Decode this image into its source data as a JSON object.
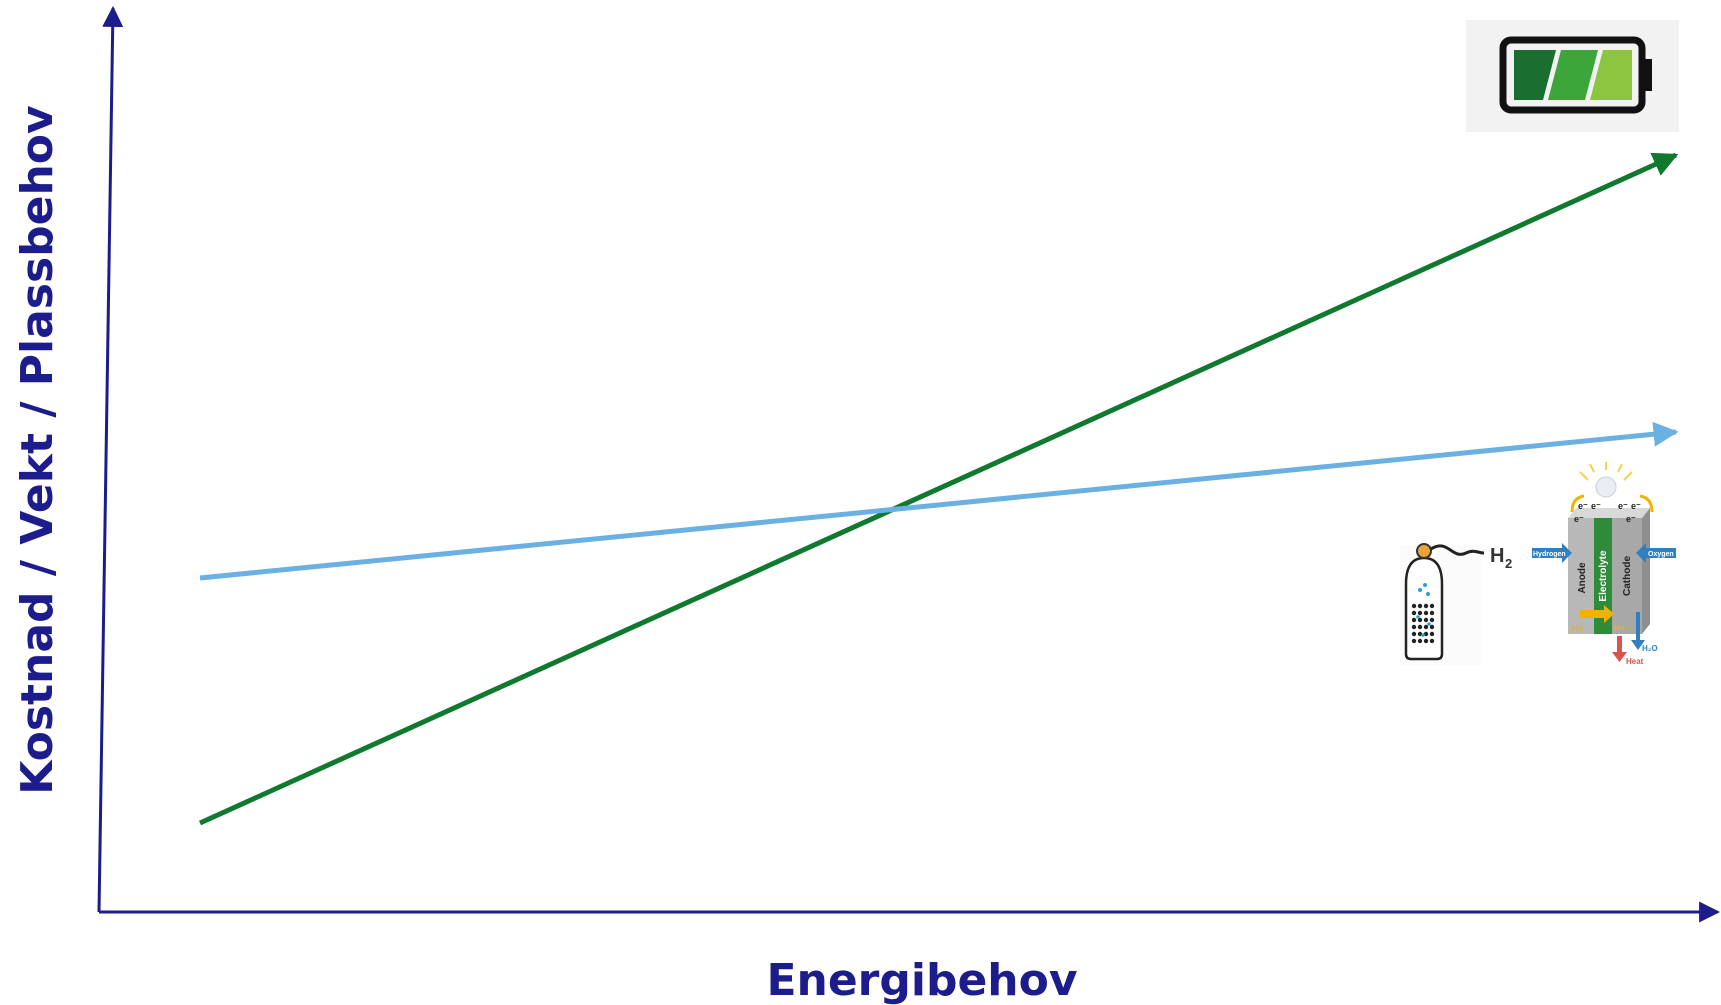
{
  "diagram": {
    "type": "line",
    "xlabel": "Energibehov",
    "ylabel": "Kostnad / Vekt / Plassbehov",
    "colors": {
      "axis": "#1c1c8c",
      "battery_line": "#0f7a2f",
      "hydrogen_line": "#6ab0e2"
    }
  },
  "icons": {
    "battery": {
      "icon": "battery-icon",
      "colors": [
        "#1a6e2e",
        "#3da63a",
        "#8cc63f"
      ]
    },
    "hydrogen": {
      "tank_icon": "hydrogen-tank-icon",
      "fuel_cell_icon": "fuel-cell-icon",
      "h2_label": "H",
      "h2_sub": "2",
      "fc": {
        "electron": "e⁻",
        "hydrogen": "Hydrogen",
        "oxygen": "Oxygen",
        "anode": "Anode",
        "electrolyte": "Electrolyte",
        "cathode": "Cathode",
        "proton": "H+",
        "water": "H₂O",
        "heat": "Heat"
      }
    }
  }
}
